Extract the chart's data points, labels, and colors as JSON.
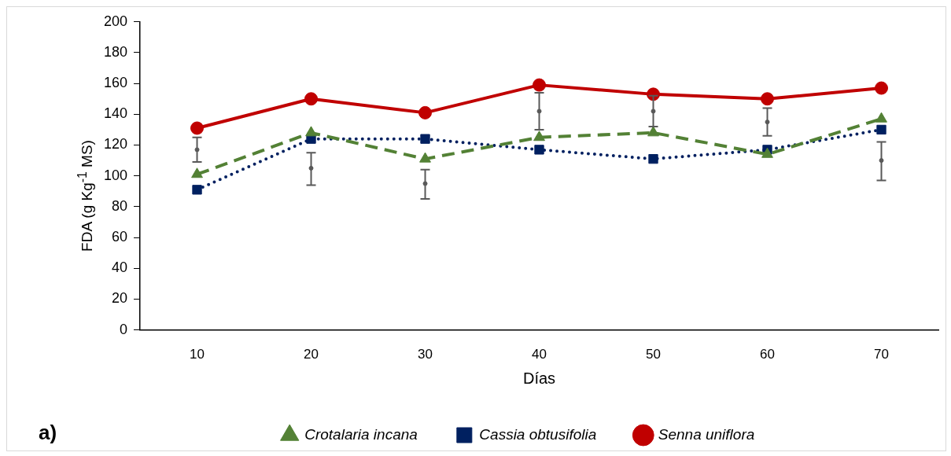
{
  "chart_data": {
    "type": "line",
    "xlabel": "Días",
    "ylabel": "FDA (g Kg$^{-1}$ MS)",
    "annotations": [
      "a)"
    ],
    "x": [
      10,
      20,
      30,
      40,
      50,
      60,
      70
    ],
    "xlim": [
      5,
      75
    ],
    "xticks": [
      10,
      20,
      30,
      40,
      50,
      60,
      70
    ],
    "ylim": [
      0,
      200
    ],
    "yticks": [
      0,
      20,
      40,
      60,
      80,
      100,
      120,
      140,
      160,
      180,
      200
    ],
    "grid": false,
    "legend": "bottom",
    "series": [
      {
        "name": "Crotalaria incana",
        "color": "#538135",
        "marker": "triangle",
        "line_style": "dashed",
        "values": [
          101,
          128,
          111,
          125,
          128,
          114,
          137
        ]
      },
      {
        "name": "Cassia obtusifolia",
        "color": "#002060",
        "marker": "square",
        "line_style": "dotted",
        "values": [
          91,
          124,
          124,
          117,
          111,
          117,
          130
        ]
      },
      {
        "name": "Senna uniflora",
        "color": "#c00000",
        "marker": "circle",
        "line_style": "solid",
        "values": [
          131,
          150,
          141,
          159,
          153,
          150,
          157
        ]
      },
      {
        "type": "scatter",
        "marker": "circle",
        "color": "#595959",
        "values": [
          117,
          105,
          95,
          142,
          142,
          135,
          110
        ],
        "errors": [
          [
            109,
            125
          ],
          [
            94,
            115
          ],
          [
            85,
            104
          ],
          [
            130,
            154
          ],
          [
            132,
            152
          ],
          [
            126,
            144
          ],
          [
            97,
            122
          ]
        ]
      }
    ]
  }
}
